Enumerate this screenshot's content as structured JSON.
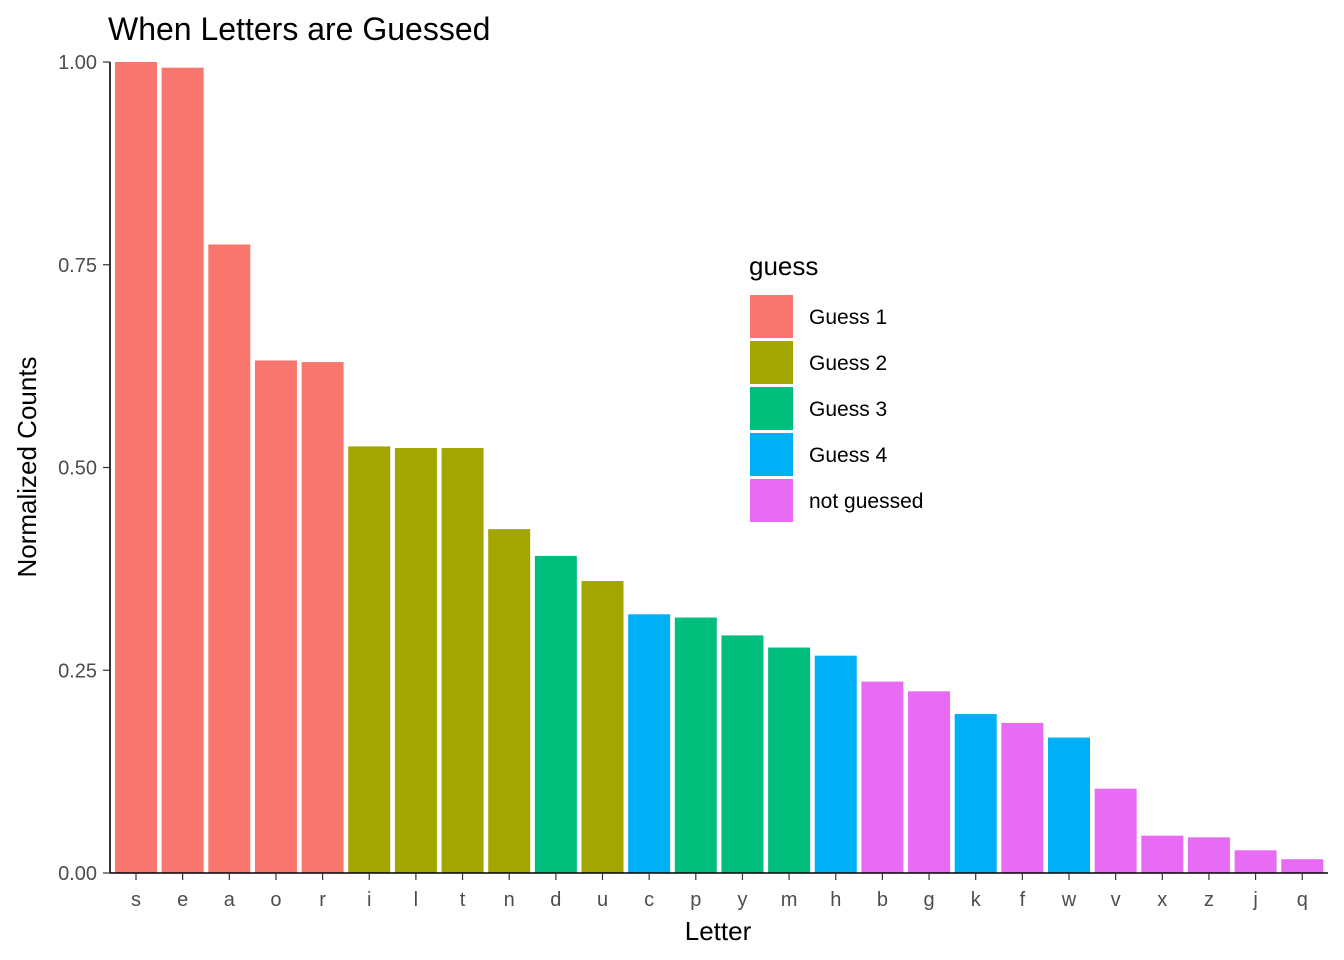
{
  "chart_data": {
    "type": "bar",
    "title": "When Letters are Guessed",
    "xlabel": "Letter",
    "ylabel": "Normalized Counts",
    "ylim": [
      0,
      1
    ],
    "y_ticks": [
      "0.00",
      "0.25",
      "0.50",
      "0.75",
      "1.00"
    ],
    "grid": false,
    "categories": [
      "s",
      "e",
      "a",
      "o",
      "r",
      "i",
      "l",
      "t",
      "n",
      "d",
      "u",
      "c",
      "p",
      "y",
      "m",
      "h",
      "b",
      "g",
      "k",
      "f",
      "w",
      "v",
      "x",
      "z",
      "j",
      "q"
    ],
    "values": [
      1.0,
      0.993,
      0.775,
      0.632,
      0.63,
      0.526,
      0.524,
      0.524,
      0.424,
      0.391,
      0.36,
      0.319,
      0.315,
      0.293,
      0.278,
      0.268,
      0.236,
      0.224,
      0.196,
      0.185,
      0.167,
      0.104,
      0.046,
      0.044,
      0.028,
      0.017
    ],
    "groups": [
      "Guess 1",
      "Guess 1",
      "Guess 1",
      "Guess 1",
      "Guess 1",
      "Guess 2",
      "Guess 2",
      "Guess 2",
      "Guess 2",
      "Guess 3",
      "Guess 2",
      "Guess 4",
      "Guess 3",
      "Guess 3",
      "Guess 3",
      "Guess 4",
      "not guessed",
      "not guessed",
      "Guess 4",
      "not guessed",
      "Guess 4",
      "not guessed",
      "not guessed",
      "not guessed",
      "not guessed",
      "not guessed"
    ],
    "legend": {
      "title": "guess",
      "placement": "right-center",
      "items": [
        {
          "label": "Guess 1",
          "color": "#F8766D"
        },
        {
          "label": "Guess 2",
          "color": "#A3A500"
        },
        {
          "label": "Guess 3",
          "color": "#00BF7D"
        },
        {
          "label": "Guess 4",
          "color": "#00B0F6"
        },
        {
          "label": "not guessed",
          "color": "#E76BF3"
        }
      ]
    }
  }
}
